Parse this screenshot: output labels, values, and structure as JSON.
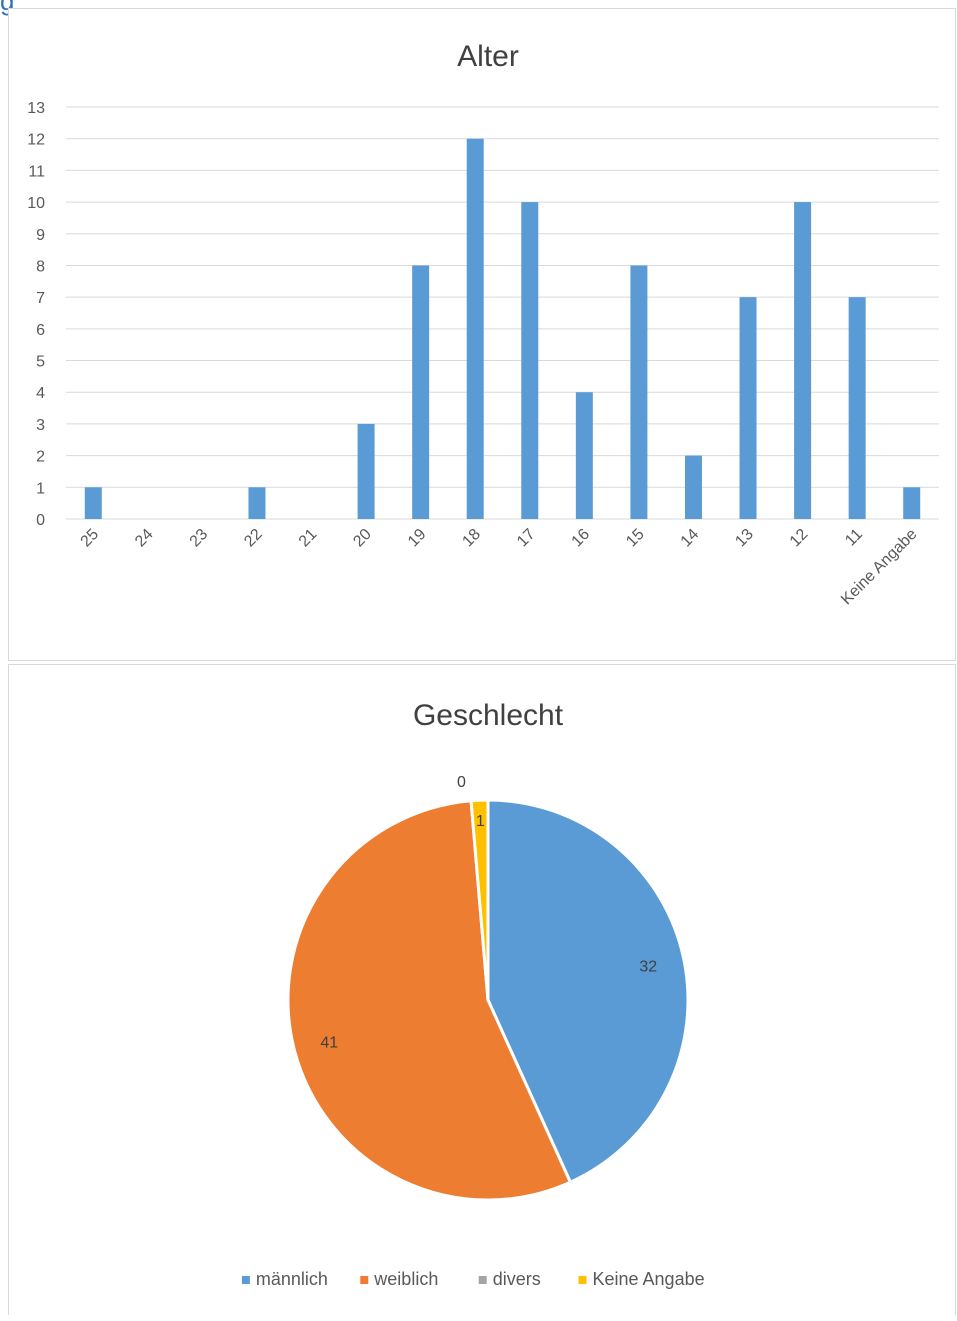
{
  "heading_fragment": "g",
  "chart_data": [
    {
      "type": "bar",
      "title": "Alter",
      "categories": [
        "25",
        "24",
        "23",
        "22",
        "21",
        "20",
        "19",
        "18",
        "17",
        "16",
        "15",
        "14",
        "13",
        "12",
        "11",
        "Keine Angabe"
      ],
      "values": [
        1,
        0,
        0,
        1,
        0,
        3,
        8,
        12,
        10,
        4,
        8,
        2,
        7,
        10,
        7,
        1
      ],
      "ylim": [
        0,
        13
      ],
      "yticks": [
        0,
        1,
        2,
        3,
        4,
        5,
        6,
        7,
        8,
        9,
        10,
        11,
        12,
        13
      ],
      "grid": true,
      "color": "#5b9bd5"
    },
    {
      "type": "pie",
      "title": "Geschlecht",
      "slices": [
        {
          "label": "männlich",
          "value": 32,
          "color": "#5b9bd5"
        },
        {
          "label": "weiblich",
          "value": 41,
          "color": "#ed7d31"
        },
        {
          "label": "divers",
          "value": 0,
          "color": "#a5a5a5"
        },
        {
          "label": "Keine Angabe",
          "value": 1,
          "color": "#ffc000"
        }
      ],
      "legend_position": "bottom"
    }
  ]
}
